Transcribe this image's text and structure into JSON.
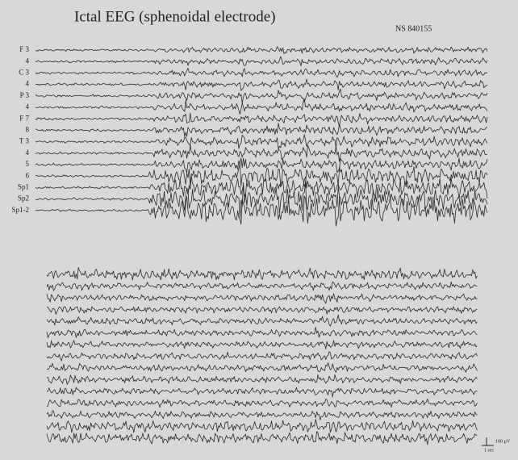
{
  "header": {
    "title": "Ictal EEG (sphenoidal electrode)",
    "id": "NS 840155"
  },
  "channels": [
    "F 3",
    "4",
    "C 3",
    "4",
    "P 3",
    "4",
    "F 7",
    "8",
    "T 3",
    "4",
    "5",
    "6",
    "Sp1",
    "Sp2",
    "Sp1-2"
  ],
  "scale": {
    "amplitude": "100 µV",
    "time": "1 sec"
  }
}
